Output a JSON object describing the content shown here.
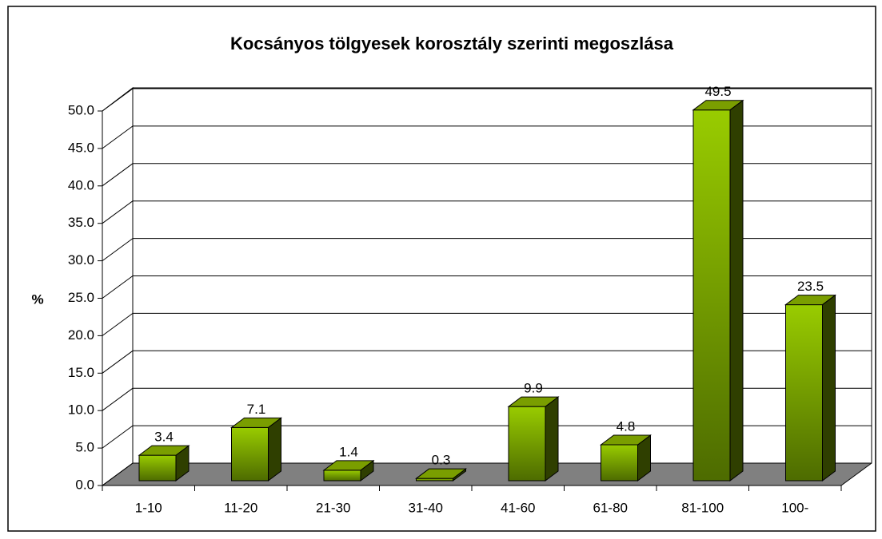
{
  "chart_data": {
    "type": "bar",
    "title": "Kocsányos tölgyesek korosztály szerinti megoszlása",
    "y_label": "%",
    "categories": [
      "1-10",
      "11-20",
      "21-30",
      "31-40",
      "41-60",
      "61-80",
      "81-100",
      "100-"
    ],
    "values": [
      3.4,
      7.1,
      1.4,
      0.3,
      9.9,
      4.8,
      49.5,
      23.5
    ],
    "color": "#99cc00",
    "ylim": [
      0,
      50
    ],
    "yticks": [
      {
        "value": 0,
        "label": "0.0"
      },
      {
        "value": 5,
        "label": "5.0"
      },
      {
        "value": 10,
        "label": "10.0"
      },
      {
        "value": 15,
        "label": "15.0"
      },
      {
        "value": 20,
        "label": "20.0"
      },
      {
        "value": 25,
        "label": "25.0"
      },
      {
        "value": 30,
        "label": "30.0"
      },
      {
        "value": 35,
        "label": "35.0"
      },
      {
        "value": 40,
        "label": "40.0"
      },
      {
        "value": 45,
        "label": "45.0"
      },
      {
        "value": 50,
        "label": "50.0"
      }
    ],
    "grid": true
  }
}
